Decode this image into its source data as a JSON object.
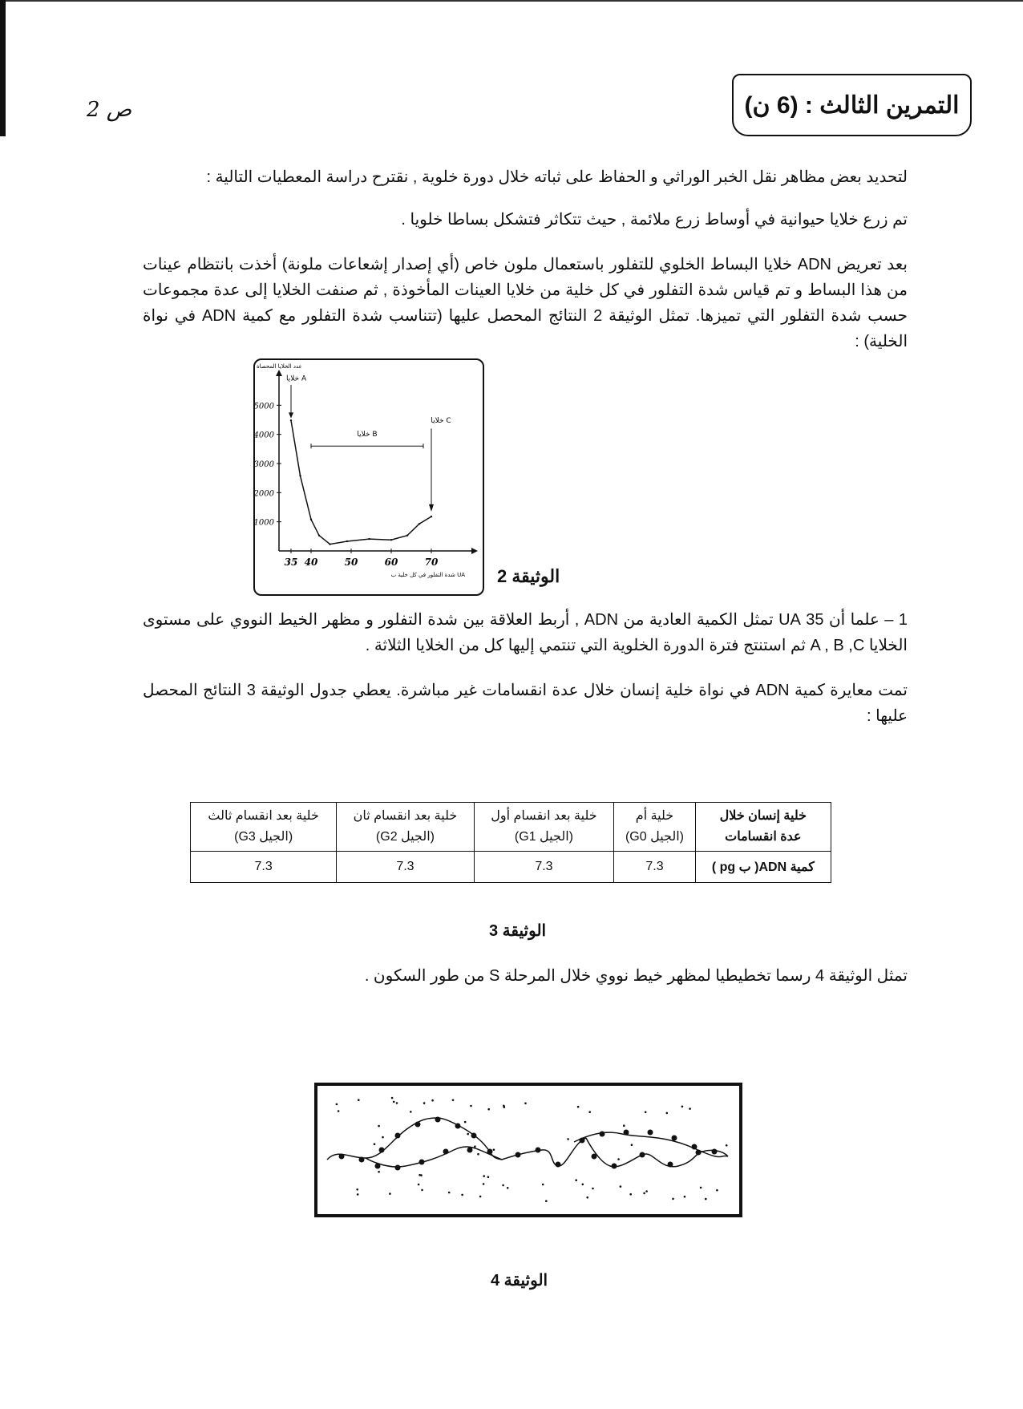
{
  "header": {
    "page_number": "ص 2",
    "exercise_title": "التمرين الثالث : (6 ن)"
  },
  "intro": {
    "line1": "لتحديد بعض مظاهر نقل الخبر الوراثي و الحفاظ على ثباته خلال دورة خلوية , نقترح دراسة المعطيات التالية :",
    "line2": "تم زرع خلايا حيوانية في أوساط زرع ملائمة , حيث تتكاثر فتشكل بساطا خلويا .",
    "line3": "بعد تعريض ADN خلايا البساط الخلوي للتفلور باستعمال ملون خاص (أي إصدار إشعاعات ملونة) أخذت بانتظام عينات من هذا البساط و تم قياس شدة التفلور في كل خلية من خلايا العينات المأخوذة , ثم صنفت الخلايا إلى عدة مجموعات حسب شدة التفلور التي تميزها. تمثل الوثيقة 2 النتائج المحصل عليها (تتناسب شدة التفلور مع كمية ADN في نواة الخلية) :"
  },
  "document2": {
    "caption": "الوثيقة 2",
    "chart_data": {
      "type": "line",
      "ylabel": "عدد الخلايا المحصاة",
      "xlabel": "شدة التفلور في كل خلية ب UA",
      "x_ticks": [
        "35",
        "40",
        "50",
        "60",
        "70"
      ],
      "y_ticks": [
        "1000",
        "2000",
        "3000",
        "4000",
        "5000"
      ],
      "xlim": [
        32,
        80
      ],
      "ylim": [
        0,
        6000
      ],
      "x": [
        35,
        37.3,
        40,
        42,
        44.7,
        49,
        54.5,
        60,
        64,
        67,
        70
      ],
      "y": [
        4480,
        2580,
        1080,
        530,
        230,
        330,
        410,
        380,
        530,
        930,
        1180
      ],
      "annotations": {
        "A": "خلايا A",
        "B": "خلايا B",
        "C": "خلايا C"
      },
      "B_range": [
        40,
        68
      ]
    }
  },
  "question1": "1 – علما أن 35 UA تمثل الكمية العادية من ADN , أربط العلاقة بين شدة التفلور و مظهر الخيط النووي على مستوى الخلايا A , B ,C ثم استنتج فترة الدورة الخلوية التي تنتمي إليها كل من الخلايا الثلاثة .",
  "paragraph3": "تمت معايرة كمية ADN في نواة خلية إنسان خلال عدة انقسامات غير مباشرة. يعطي جدول الوثيقة 3 النتائج المحصل عليها :",
  "document3": {
    "caption": "الوثيقة 3",
    "row_header": {
      "line1": "خلية إنسان خلال",
      "line2": "عدة انقسامات"
    },
    "columns": [
      {
        "line1": "خلية أم",
        "line2": "(الجيل G0)"
      },
      {
        "line1": "خلية بعد انقسام أول",
        "line2": "(الجيل G1)"
      },
      {
        "line1": "خلية بعد انقسام ثان",
        "line2": "(الجيل G2)"
      },
      {
        "line1": "خلية بعد انقسام ثالث",
        "line2": "(الجيل G3)"
      }
    ],
    "value_row_label": "كمية ADN( ب pg )",
    "values": [
      "7.3",
      "7.3",
      "7.3",
      "7.3"
    ]
  },
  "paragraph4": "تمثل الوثيقة 4 رسما تخطيطيا لمظهر خيط نووي خلال المرحلة S من طور السكون .",
  "document4": {
    "caption": "الوثيقة 4"
  }
}
